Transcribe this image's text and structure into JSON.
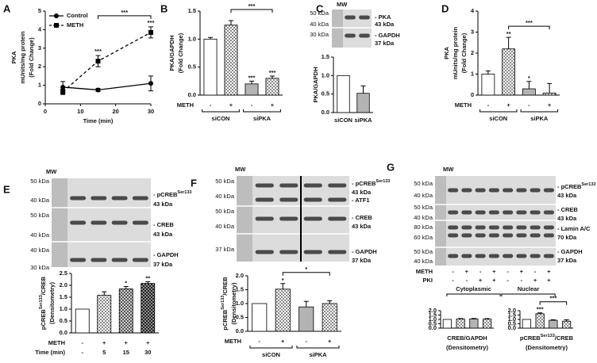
{
  "panel_labels": [
    "A",
    "B",
    "C",
    "D",
    "E",
    "F",
    "G"
  ],
  "chart_data": [
    {
      "type": "line",
      "x": [
        5,
        15,
        30
      ],
      "xlim": [
        0,
        30
      ],
      "xticks": [
        0,
        10,
        20,
        30
      ],
      "ylim": [
        0,
        5
      ],
      "yticks": [
        0,
        1,
        2,
        3,
        4,
        5
      ],
      "xlabel": "Time (min)",
      "ylabel": [
        "PKA",
        "mUnits/mg protein",
        "(Fold Change)"
      ],
      "series": [
        {
          "name": "Control",
          "marker": "circle",
          "dashed": false,
          "color": "#000000",
          "values": [
            0.9,
            0.75,
            1.1
          ],
          "errors": [
            0.3,
            0.08,
            0.4
          ]
        },
        {
          "name": "METH",
          "marker": "square",
          "dashed": true,
          "color": "#000000",
          "values": [
            0.65,
            2.3,
            3.85
          ],
          "errors": [
            0.15,
            0.3,
            0.3
          ],
          "sig": [
            null,
            "***",
            "***"
          ]
        }
      ],
      "bracket": {
        "label": "***",
        "between": [
          1,
          2
        ]
      }
    },
    {
      "type": "bar",
      "values": [
        1.0,
        1.25,
        0.2,
        0.3
      ],
      "errors": [
        0.03,
        0.08,
        0.05,
        0.04
      ],
      "fills": [
        "white",
        "check",
        "gray",
        "check"
      ],
      "sig": [
        null,
        null,
        "***",
        "***"
      ],
      "bracket": {
        "label": "***",
        "between": [
          1,
          3
        ]
      },
      "ylim": [
        0,
        1.5
      ],
      "yticks": [
        {
          "value": 0,
          "label": "0.0"
        },
        {
          "value": 0.5,
          "label": "0.5"
        },
        {
          "value": 1,
          "label": "1.0"
        },
        {
          "value": 1.5,
          "label": "1.5"
        }
      ],
      "ylabel": [
        "PKA/GAPDH",
        "(Fold Change)"
      ],
      "rows": [
        {
          "name": "METH",
          "values": [
            "-",
            "+",
            "-",
            "+"
          ]
        }
      ],
      "groups": [
        "siCON",
        "siPKA"
      ]
    },
    {
      "type": "bar",
      "categories": [
        "siCON",
        "siPKA"
      ],
      "values": [
        1.0,
        0.52
      ],
      "errors": [
        null,
        0.2
      ],
      "fills": [
        "white",
        "gray"
      ],
      "ylim": [
        0,
        1.5
      ],
      "yticks": [
        {
          "value": 0,
          "label": "0.0"
        },
        {
          "value": 0.5,
          "label": "0.5"
        },
        {
          "value": 1,
          "label": "1.0"
        },
        {
          "value": 1.5,
          "label": "1.5"
        }
      ],
      "ylabel": [
        "PKA/GAPDH"
      ]
    },
    {
      "type": "bar",
      "values": [
        1.0,
        2.2,
        0.3,
        0.1
      ],
      "errors": [
        0.15,
        0.55,
        0.35,
        0.45
      ],
      "fills": [
        "white",
        "check",
        "gray",
        "check"
      ],
      "sig": [
        null,
        "**",
        "*",
        null
      ],
      "bracket": {
        "label": "***",
        "between": [
          1,
          3
        ]
      },
      "ylim": [
        0,
        4
      ],
      "yticks": [
        0,
        1,
        2,
        3,
        4
      ],
      "ylabel": [
        "PKA",
        "mUnits/mg protein",
        "(Fold Change)"
      ],
      "rows": [
        {
          "name": "METH",
          "values": [
            "-",
            "+",
            "-",
            "+"
          ]
        }
      ],
      "groups": [
        "siCON",
        "siPKA"
      ]
    },
    {
      "type": "bar",
      "values": [
        1.0,
        1.58,
        1.85,
        2.08
      ],
      "errors": [
        null,
        0.15,
        0.1,
        0.07
      ],
      "fills": [
        "white",
        "check",
        "check2",
        "check3"
      ],
      "sig": [
        null,
        null,
        "*",
        "**"
      ],
      "ylim": [
        0,
        2.5
      ],
      "yticks": [
        {
          "value": 0,
          "label": "0.0"
        },
        {
          "value": 0.5,
          "label": "0.5"
        },
        {
          "value": 1,
          "label": "1.0"
        },
        {
          "value": 1.5,
          "label": "1.5"
        },
        {
          "value": 2,
          "label": "2.0"
        },
        {
          "value": 2.5,
          "label": "2.5"
        }
      ],
      "ylabel": [
        [
          "pCREB",
          "Ser133",
          "/CREB"
        ],
        "(Densitometry)"
      ],
      "rows": [
        {
          "name": "METH",
          "values": [
            "-",
            "+",
            "+",
            "+"
          ]
        },
        {
          "name": "Time (min)",
          "values": [
            "-",
            "5",
            "15",
            "30"
          ]
        }
      ]
    },
    {
      "type": "bar",
      "values": [
        1.0,
        1.52,
        0.88,
        1.0
      ],
      "errors": [
        null,
        0.2,
        0.2,
        0.1
      ],
      "fills": [
        "white",
        "check",
        "gray",
        "check"
      ],
      "sig": [
        null,
        "*",
        null,
        null
      ],
      "bracket": {
        "label": "*",
        "between": [
          1,
          3
        ]
      },
      "ylim": [
        0,
        2
      ],
      "yticks": [
        {
          "value": 0,
          "label": "0.0"
        },
        {
          "value": 0.5,
          "label": "0.5"
        },
        {
          "value": 1,
          "label": "1.0"
        },
        {
          "value": 1.5,
          "label": "1.5"
        },
        {
          "value": 2,
          "label": "2.0"
        }
      ],
      "ylabel": [
        [
          "pCREB",
          "Ser133",
          "/CREB"
        ],
        "(Densitometry)"
      ],
      "rows": [
        {
          "name": "METH",
          "values": [
            "-",
            "+",
            "-",
            "+"
          ]
        }
      ],
      "groups": [
        "siCON",
        "siPKA"
      ]
    },
    {
      "type": "bar",
      "values": [
        1.0,
        1.05,
        1.05,
        1.03
      ],
      "errors": [
        null,
        0.05,
        0.06,
        0.06
      ],
      "fills": [
        "white",
        "check",
        "gray",
        "check"
      ],
      "ylim": [
        0,
        2
      ],
      "yticks": [
        {
          "value": 0,
          "label": "0.0"
        },
        {
          "value": 0.5,
          "label": "0.5"
        },
        {
          "value": 1,
          "label": "1.0"
        },
        {
          "value": 1.5,
          "label": "1.5"
        },
        {
          "value": 2,
          "label": "2.0"
        }
      ],
      "xlabel": [
        "CREB/GAPDH",
        "(Densitometry)"
      ]
    },
    {
      "type": "bar",
      "values": [
        1.0,
        1.65,
        0.9,
        0.8
      ],
      "errors": [
        null,
        0.1,
        0.06,
        0.15
      ],
      "fills": [
        "white",
        "check",
        "gray",
        "check"
      ],
      "sig": [
        null,
        "***",
        null,
        null
      ],
      "bracket": {
        "label": "***",
        "between": [
          1,
          3
        ]
      },
      "ylim": [
        0,
        2
      ],
      "yticks": [
        {
          "value": 0,
          "label": "0.0"
        },
        {
          "value": 0.5,
          "label": "0.5"
        },
        {
          "value": 1,
          "label": "1.0"
        },
        {
          "value": 1.5,
          "label": "1.5"
        },
        {
          "value": 2,
          "label": "2.0"
        }
      ],
      "xlabel": [
        [
          "pCREB",
          "Ser133",
          "/CREB"
        ],
        "(Densitometry)"
      ]
    }
  ],
  "blots": [
    {
      "mw": "MW",
      "left": [
        "50 kDa",
        "40 kDa",
        "30 kDa"
      ],
      "right": [
        "- PKA",
        "43 kDa",
        "- GAPDH",
        "37 kDa"
      ]
    },
    {
      "mw": "MW",
      "left": [
        "50 kDa",
        "40 kDa",
        "50 kDa",
        "40 kDa",
        "40 kDa",
        "30 kDa"
      ],
      "right": [
        [
          "- pCREB",
          "Ser133"
        ],
        "43 kDa",
        "- CREB",
        "43 kDa",
        "- GAPDH",
        "37 kDa"
      ]
    },
    {
      "mw": "MW",
      "left": [
        "50 kDa",
        "40 kDa",
        "50 kDa",
        "40 kDa",
        "37 kDa"
      ],
      "right": [
        [
          "- pCREB",
          "Ser133"
        ],
        "43 kDa",
        "- ATF1",
        "- CREB",
        "43 kDa",
        "- GAPDH",
        "37 kDa"
      ]
    },
    {
      "mw": "MW",
      "left": [
        "50 kDa",
        "40 kDa",
        "50 kDa",
        "40 kDa",
        "80 kDa",
        "60 kDa",
        "50 kDa",
        "40 kDa"
      ],
      "right": [
        [
          "- pCREB",
          "Ser133"
        ],
        "43 kDa",
        "- CREB",
        "43 kDa",
        "- Lamin A/C",
        "70 kDa",
        "- GAPDH",
        "37 kDa"
      ],
      "conditions": {
        "rows": [
          {
            "name": "METH",
            "values": [
              "-",
              "+",
              "-",
              "+",
              "-",
              "+",
              "-",
              "+"
            ]
          },
          {
            "name": "PKI",
            "values": [
              "-",
              "-",
              "+",
              "+",
              "-",
              "-",
              "+",
              "+"
            ]
          }
        ],
        "groups": [
          "Cytoplasmic",
          "Nuclear"
        ]
      }
    }
  ]
}
